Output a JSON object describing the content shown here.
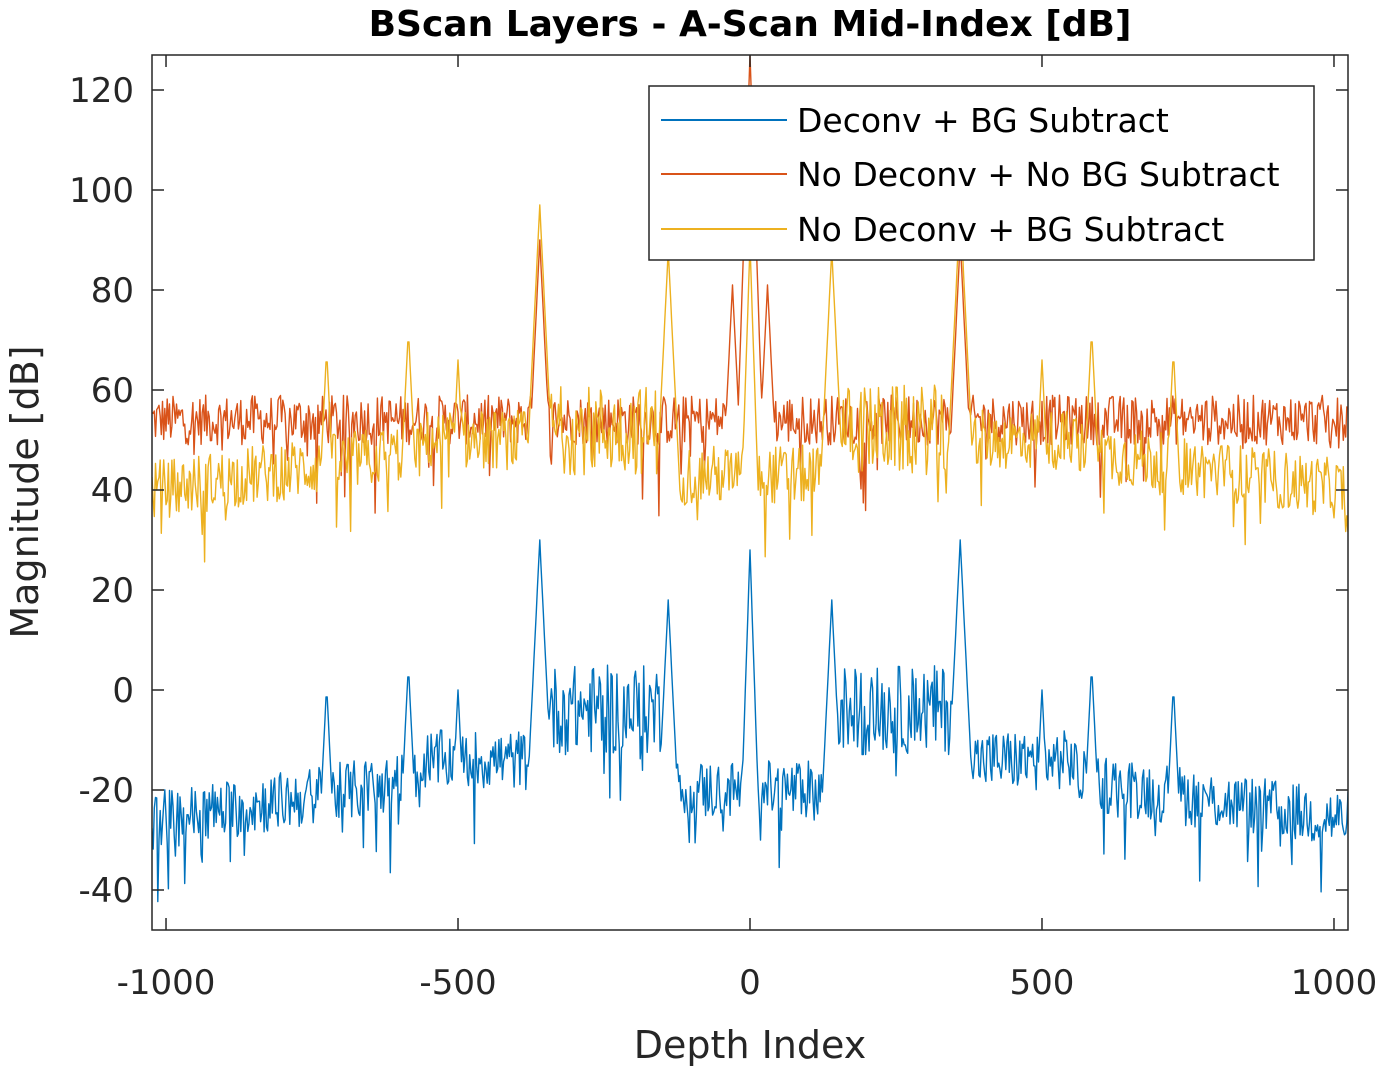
{
  "chart_data": {
    "type": "line",
    "title": "BScan Layers - A-Scan Mid-Index [dB]",
    "xlabel": "Depth Index",
    "ylabel": "Magnitude [dB]",
    "xlim": [
      -1024,
      1024
    ],
    "ylim": [
      -48,
      127
    ],
    "grid": false,
    "legend_position": "top-right",
    "x_ticks": [
      -1000,
      -500,
      0,
      500,
      1000
    ],
    "x_tick_labels": [
      "-1000",
      "-500",
      "0",
      "500",
      "1000"
    ],
    "y_ticks": [
      -40,
      -20,
      0,
      20,
      40,
      60,
      80,
      100,
      120
    ],
    "y_tick_labels": [
      "-40",
      "-20",
      "0",
      "20",
      "40",
      "60",
      "80",
      "100",
      "120"
    ],
    "series": [
      {
        "name": "Deconv + BG Subtract",
        "color": "#0072BD",
        "baseline": "-25 at edges, -15 around ±500, -20 near center",
        "peaks": [
          [
            -725,
            1
          ],
          [
            -585,
            5
          ],
          [
            -500,
            0
          ],
          [
            -360,
            30
          ],
          [
            -140,
            18
          ],
          [
            0,
            28
          ],
          [
            140,
            18
          ],
          [
            360,
            30
          ],
          [
            500,
            0
          ],
          [
            585,
            5
          ],
          [
            725,
            1
          ]
        ],
        "plateaus": [
          [
            -355,
            -145,
            5
          ],
          [
            145,
            355,
            5
          ]
        ]
      },
      {
        "name": "No Deconv + No BG Subtract",
        "color": "#D95319",
        "baseline": "55 across range",
        "peaks": [
          [
            -30,
            81
          ],
          [
            0,
            127
          ],
          [
            30,
            81
          ],
          [
            -360,
            90
          ],
          [
            360,
            90
          ]
        ],
        "plateaus": []
      },
      {
        "name": "No Deconv + BG Subtract",
        "color": "#EDB120",
        "baseline": "40 at edges, 52 toward ±400",
        "peaks": [
          [
            -725,
            68
          ],
          [
            -585,
            72
          ],
          [
            -500,
            66
          ],
          [
            -360,
            97
          ],
          [
            -140,
            88
          ],
          [
            0,
            89
          ],
          [
            140,
            88
          ],
          [
            360,
            97
          ],
          [
            500,
            66
          ],
          [
            585,
            72
          ],
          [
            725,
            68
          ]
        ],
        "plateaus": [
          [
            -355,
            -145,
            62
          ],
          [
            145,
            355,
            62
          ]
        ]
      }
    ]
  }
}
